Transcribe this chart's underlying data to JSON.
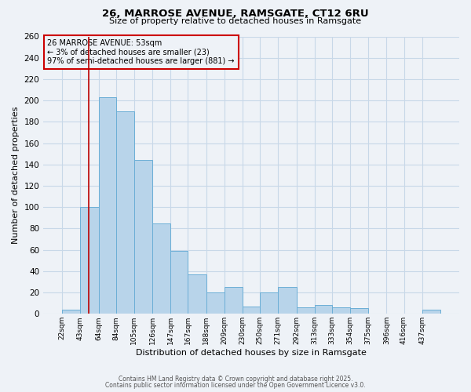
{
  "title": "26, MARROSE AVENUE, RAMSGATE, CT12 6RU",
  "subtitle": "Size of property relative to detached houses in Ramsgate",
  "xlabel": "Distribution of detached houses by size in Ramsgate",
  "ylabel": "Number of detached properties",
  "bin_labels": [
    "22sqm",
    "43sqm",
    "64sqm",
    "84sqm",
    "105sqm",
    "126sqm",
    "147sqm",
    "167sqm",
    "188sqm",
    "209sqm",
    "230sqm",
    "250sqm",
    "271sqm",
    "292sqm",
    "313sqm",
    "333sqm",
    "354sqm",
    "375sqm",
    "396sqm",
    "416sqm",
    "437sqm"
  ],
  "bar_values": [
    4,
    100,
    203,
    190,
    144,
    85,
    59,
    37,
    20,
    25,
    7,
    20,
    25,
    6,
    8,
    6,
    5,
    0,
    0,
    0,
    4
  ],
  "bar_color": "#b8d4ea",
  "bar_edge_color": "#6baed6",
  "vline_color": "#bb0000",
  "annotation_title": "26 MARROSE AVENUE: 53sqm",
  "annotation_line1": "← 3% of detached houses are smaller (23)",
  "annotation_line2": "97% of semi-detached houses are larger (881) →",
  "annotation_box_color": "#cc0000",
  "ylim": [
    0,
    260
  ],
  "yticks": [
    0,
    20,
    40,
    60,
    80,
    100,
    120,
    140,
    160,
    180,
    200,
    220,
    240,
    260
  ],
  "grid_color": "#c8d8e8",
  "background_color": "#eef2f7",
  "footer1": "Contains HM Land Registry data © Crown copyright and database right 2025.",
  "footer2": "Contains public sector information licensed under the Open Government Licence v3.0.",
  "bin_edges": [
    22,
    43,
    64,
    84,
    105,
    126,
    147,
    167,
    188,
    209,
    230,
    250,
    271,
    292,
    313,
    333,
    354,
    375,
    396,
    416,
    437,
    458
  ],
  "vline_x": 53
}
